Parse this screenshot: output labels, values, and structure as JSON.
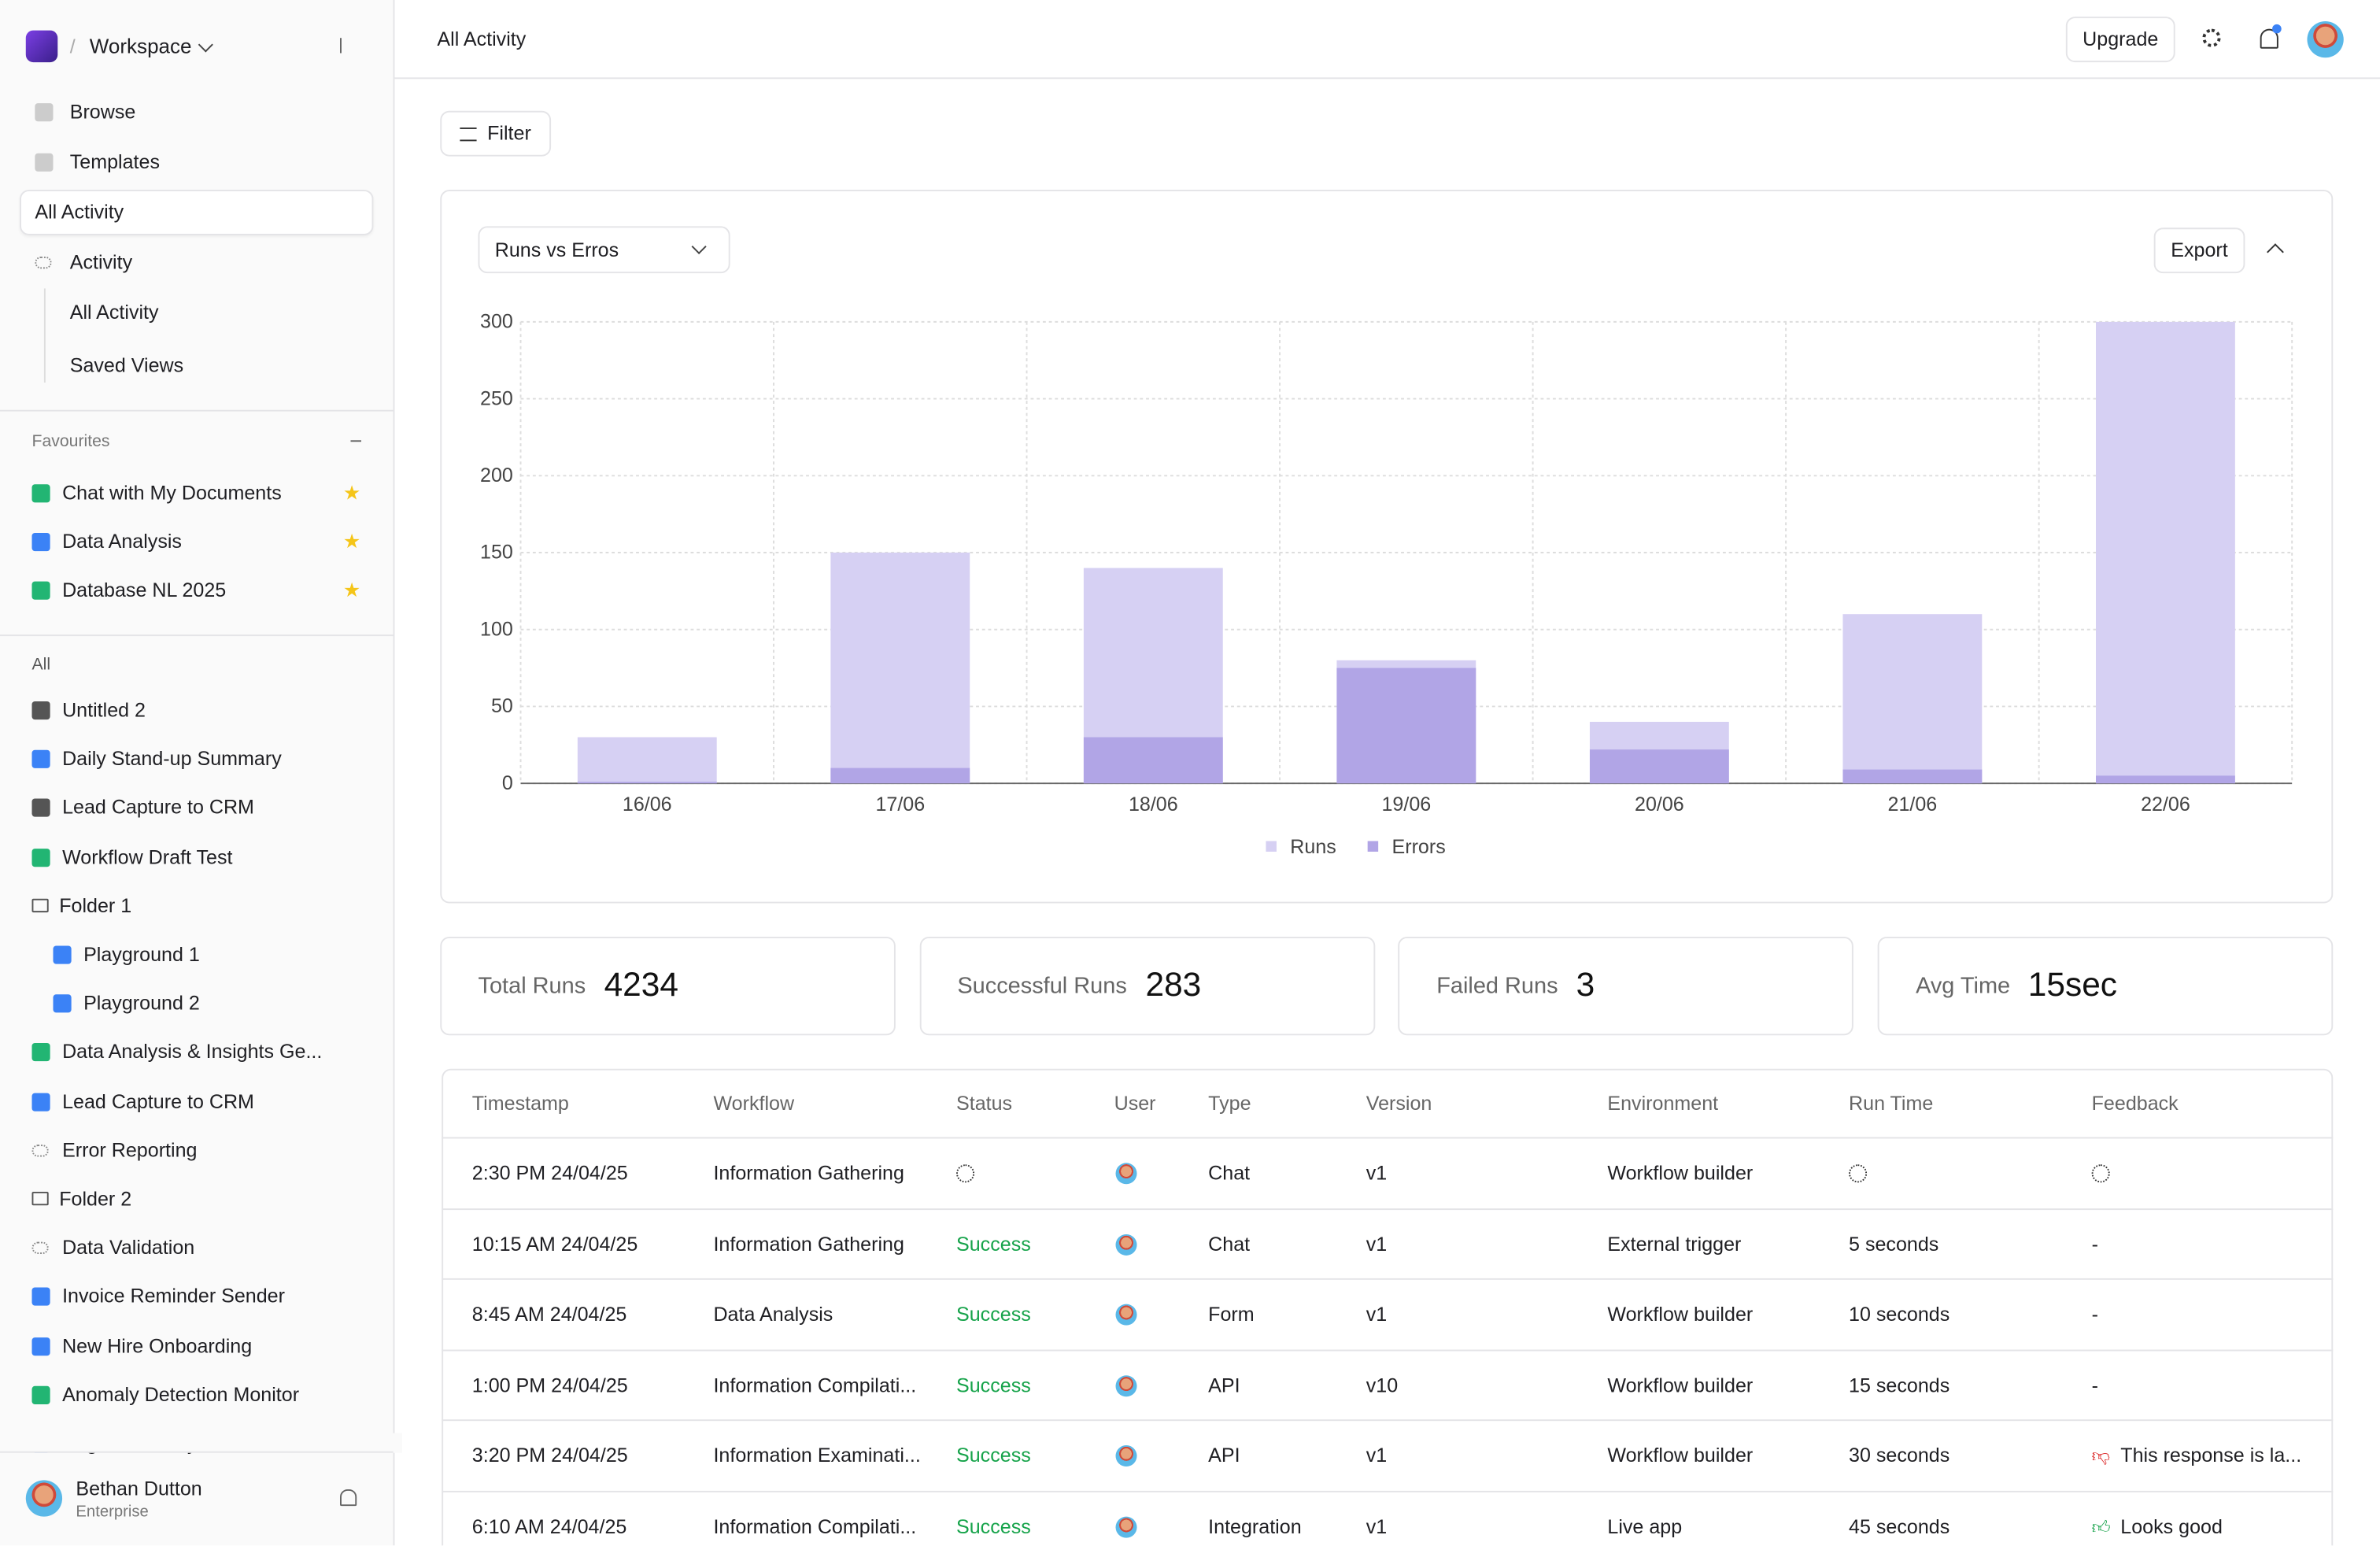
{
  "sidebar": {
    "workspace": "Workspace",
    "nav": [
      "Browse",
      "Templates",
      "All Activity",
      "Activity"
    ],
    "activity_sub": [
      "All Activity",
      "Saved Views"
    ],
    "favourites_title": "Favourites",
    "favourites": [
      "Chat with My Documents",
      "Data Analysis",
      "Database NL 2025"
    ],
    "filter": "All",
    "items": [
      "Untitled 2",
      "Daily Stand-up Summary",
      "Lead Capture to CRM",
      "Workflow Draft Test",
      "Folder 1",
      "Playground 1",
      "Playground 2",
      "Data Analysis & Insights Ge...",
      "Lead Capture to CRM",
      "Error Reporting",
      "Folder 2",
      "Data Validation",
      "Invoice Reminder Sender",
      "New Hire Onboarding",
      "Anomaly Detection Monitor",
      "Bug Tracker Sync"
    ],
    "user": {
      "name": "Bethan Dutton",
      "plan": "Enterprise"
    }
  },
  "header": {
    "title": "All Activity",
    "upgrade": "Upgrade"
  },
  "toolbar": {
    "filter": "Filter"
  },
  "chart_data": {
    "type": "bar",
    "selector": "Runs vs Erros",
    "export": "Export",
    "categories": [
      "16/06",
      "17/06",
      "18/06",
      "19/06",
      "20/06",
      "21/06",
      "22/06"
    ],
    "series": [
      {
        "name": "Runs",
        "color": "#d6d0f3",
        "values": [
          30,
          150,
          140,
          80,
          40,
          110,
          300
        ]
      },
      {
        "name": "Errors",
        "color": "#b1a5e6",
        "values": [
          1,
          10,
          30,
          75,
          22,
          9,
          5
        ]
      }
    ],
    "ylim": [
      0,
      300
    ],
    "yticks": [
      0,
      50,
      100,
      150,
      200,
      250,
      300
    ],
    "grid": true,
    "legend": "bottom"
  },
  "stats": [
    {
      "label": "Total Runs",
      "value": "4234"
    },
    {
      "label": "Successful Runs",
      "value": "283"
    },
    {
      "label": "Failed Runs",
      "value": "3"
    },
    {
      "label": "Avg Time",
      "value": "15sec"
    }
  ],
  "table": {
    "columns": [
      "Timestamp",
      "Workflow",
      "Status",
      "User",
      "Type",
      "Version",
      "Environment",
      "Run Time",
      "Feedback"
    ],
    "rows": [
      [
        "2:30 PM 24/04/25",
        "Information Gathering",
        null,
        null,
        "Chat",
        "v1",
        "Workflow builder",
        null,
        null
      ],
      [
        "10:15 AM 24/04/25",
        "Information Gathering",
        "Success",
        null,
        "Chat",
        "v1",
        "External trigger",
        "5 seconds",
        "-"
      ],
      [
        "8:45 AM 24/04/25",
        "Data Analysis",
        "Success",
        null,
        "Form",
        "v1",
        "Workflow builder",
        "10 seconds",
        "-"
      ],
      [
        "1:00 PM 24/04/25",
        "Information Compilati...",
        "Success",
        null,
        "API",
        "v10",
        "Workflow builder",
        "15 seconds",
        "-"
      ],
      [
        "3:20 PM 24/04/25",
        "Information Examinati...",
        "Success",
        null,
        "API",
        "v1",
        "Workflow builder",
        "30 seconds",
        "This response is la..."
      ],
      [
        "6:10 AM 24/04/25",
        "Information Compilati...",
        "Success",
        null,
        "Integration",
        "v1",
        "Live app",
        "45 seconds",
        "Looks good"
      ]
    ]
  }
}
